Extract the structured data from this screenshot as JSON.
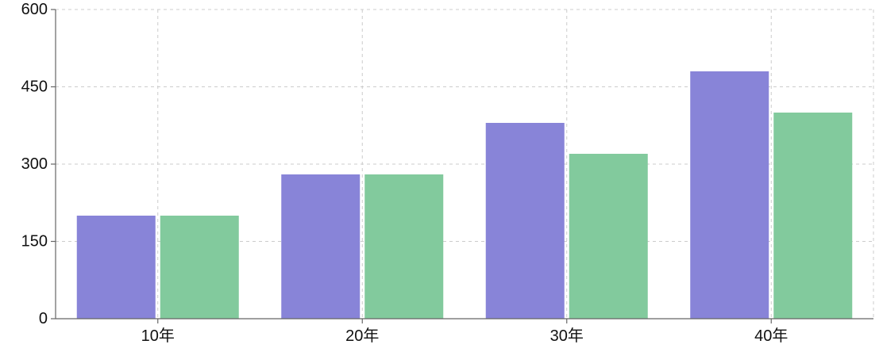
{
  "chart_data": {
    "type": "bar",
    "categories": [
      "10年",
      "20年",
      "30年",
      "40年"
    ],
    "series": [
      {
        "color": "#8884d8",
        "values": [
          200,
          280,
          380,
          480
        ]
      },
      {
        "color": "#82ca9d",
        "values": [
          200,
          280,
          320,
          400
        ]
      }
    ],
    "y_ticks": [
      0,
      150,
      300,
      450,
      600
    ],
    "ylim": [
      0,
      600
    ],
    "grid": true,
    "grid_style": "dashed",
    "legend": "none"
  }
}
